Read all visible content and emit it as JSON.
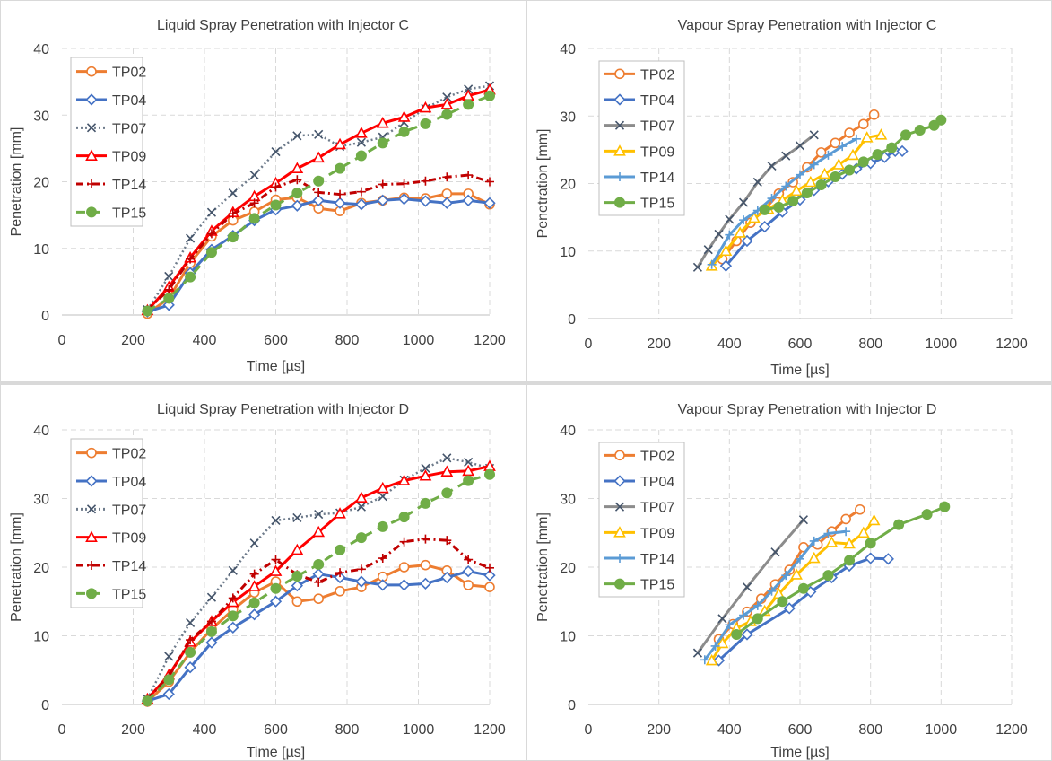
{
  "colors": {
    "TP02": "#ED7D31",
    "TP04": "#4472C4",
    "TP07": "#6E7B8B",
    "TP09": "#FF0000",
    "TP14": "#C00000",
    "TP15": "#70AD47",
    "TP07_vapour": "#8C8C8C",
    "TP09_vapour": "#FFC000",
    "TP14_vapour": "#5B9BD5"
  },
  "chart_data": [
    {
      "type": "line",
      "title": "Liquid Spray Penetration with Injector C",
      "xlabel": "Time [µs]",
      "ylabel": "Penetration [mm]",
      "xlim": [
        0,
        1200
      ],
      "ylim": [
        0,
        40
      ],
      "xticks": [
        0,
        200,
        400,
        600,
        800,
        1000,
        1200
      ],
      "yticks": [
        0,
        10,
        20,
        30,
        40
      ],
      "grid": true,
      "legend_position": "top-left",
      "series": [
        {
          "name": "TP02",
          "marker": "circle",
          "dash": "solid",
          "color": "#ED7D31",
          "x": [
            240,
            300,
            360,
            420,
            480,
            540,
            600,
            660,
            720,
            780,
            840,
            900,
            960,
            1020,
            1080,
            1140,
            1200
          ],
          "y": [
            0.2,
            2.5,
            7.8,
            11.8,
            14.2,
            15.5,
            17.3,
            17.6,
            16.0,
            15.6,
            16.8,
            17.2,
            17.6,
            17.5,
            18.2,
            18.2,
            16.6
          ]
        },
        {
          "name": "TP04",
          "marker": "diamond",
          "dash": "solid",
          "color": "#4472C4",
          "x": [
            240,
            300,
            360,
            420,
            480,
            540,
            600,
            660,
            720,
            780,
            840,
            900,
            960,
            1020,
            1080,
            1140,
            1200
          ],
          "y": [
            0.5,
            1.5,
            6.3,
            9.8,
            11.9,
            14.2,
            15.8,
            16.4,
            17.2,
            16.8,
            16.6,
            17.2,
            17.4,
            17.1,
            16.8,
            17.2,
            16.8
          ]
        },
        {
          "name": "TP07",
          "marker": "x",
          "dash": "dotted",
          "color": "#6E7B8B",
          "x": [
            240,
            300,
            360,
            420,
            480,
            540,
            600,
            660,
            720,
            780,
            840,
            900,
            960,
            1020,
            1080,
            1140,
            1200
          ],
          "y": [
            0.8,
            5.8,
            11.5,
            15.4,
            18.3,
            21.0,
            24.5,
            26.9,
            27.1,
            25.3,
            25.9,
            26.7,
            28.9,
            31.0,
            32.7,
            33.9,
            34.4
          ]
        },
        {
          "name": "TP09",
          "marker": "triangle",
          "dash": "solid",
          "color": "#FF0000",
          "x": [
            240,
            300,
            360,
            420,
            480,
            540,
            600,
            660,
            720,
            780,
            840,
            900,
            960,
            1020,
            1080,
            1140,
            1200
          ],
          "y": [
            0.7,
            4.2,
            8.6,
            12.6,
            15.4,
            17.8,
            19.8,
            22.0,
            23.6,
            25.6,
            27.3,
            28.8,
            29.7,
            31.1,
            31.6,
            32.9,
            33.8
          ]
        },
        {
          "name": "TP14",
          "marker": "plus",
          "dash": "dashdot",
          "color": "#C00000",
          "x": [
            240,
            300,
            360,
            420,
            480,
            540,
            600,
            660,
            720,
            780,
            840,
            900,
            960,
            1020,
            1080,
            1140,
            1200
          ],
          "y": [
            0.8,
            3.8,
            8.4,
            12.2,
            15.2,
            16.8,
            19.2,
            20.3,
            18.4,
            18.1,
            18.5,
            19.6,
            19.7,
            20.1,
            20.7,
            21.0,
            20.0
          ]
        },
        {
          "name": "TP15",
          "marker": "dot",
          "dash": "dashed",
          "color": "#70AD47",
          "x": [
            240,
            300,
            360,
            420,
            480,
            540,
            600,
            660,
            720,
            780,
            840,
            900,
            960,
            1020,
            1080,
            1140,
            1200
          ],
          "y": [
            0.6,
            2.5,
            5.7,
            9.4,
            11.7,
            14.5,
            16.5,
            18.3,
            20.1,
            22.0,
            23.9,
            25.8,
            27.5,
            28.7,
            30.1,
            31.6,
            32.9
          ]
        }
      ]
    },
    {
      "type": "line",
      "title": "Vapour Spray Penetration with Injector C",
      "xlabel": "Time [µs]",
      "ylabel": "Penetration [mm]",
      "xlim": [
        0,
        1200
      ],
      "ylim": [
        0,
        40
      ],
      "xticks": [
        0,
        200,
        400,
        600,
        800,
        1000,
        1200
      ],
      "yticks": [
        0,
        10,
        20,
        30,
        40
      ],
      "grid": true,
      "legend_position": "top-left",
      "series": [
        {
          "name": "TP02",
          "marker": "circle",
          "dash": "solid",
          "color": "#ED7D31",
          "x": [
            380,
            420,
            460,
            500,
            540,
            580,
            620,
            660,
            700,
            740,
            780,
            810
          ],
          "y": [
            8.8,
            11.5,
            14.2,
            16.2,
            18.5,
            20.2,
            22.4,
            24.6,
            26.0,
            27.5,
            28.8,
            30.2
          ]
        },
        {
          "name": "TP04",
          "marker": "diamond",
          "dash": "solid",
          "color": "#4472C4",
          "x": [
            390,
            450,
            500,
            550,
            600,
            640,
            680,
            720,
            760,
            800,
            840,
            870,
            890
          ],
          "y": [
            7.8,
            11.5,
            13.6,
            15.8,
            17.6,
            19.0,
            20.3,
            21.4,
            22.2,
            23.0,
            23.9,
            24.8,
            24.8
          ]
        },
        {
          "name": "TP07",
          "marker": "x",
          "dash": "solid",
          "color": "#8C8C8C",
          "x": [
            310,
            340,
            370,
            400,
            440,
            480,
            520,
            560,
            600,
            640
          ],
          "y": [
            7.6,
            10.2,
            12.5,
            14.7,
            17.2,
            20.2,
            22.6,
            24.1,
            25.6,
            27.2
          ]
        },
        {
          "name": "TP09",
          "marker": "triangle",
          "dash": "solid",
          "color": "#FFC000",
          "x": [
            350,
            390,
            430,
            470,
            510,
            550,
            590,
            630,
            670,
            710,
            750,
            790,
            830
          ],
          "y": [
            7.8,
            10.0,
            12.7,
            14.9,
            16.2,
            17.5,
            18.9,
            20.2,
            21.4,
            22.8,
            24.2,
            26.8,
            27.2
          ]
        },
        {
          "name": "TP14",
          "marker": "plus",
          "dash": "solid",
          "color": "#5B9BD5",
          "x": [
            350,
            400,
            440,
            480,
            520,
            560,
            600,
            640,
            680,
            720,
            760
          ],
          "y": [
            8.0,
            12.4,
            14.6,
            16.0,
            17.8,
            19.6,
            21.3,
            22.8,
            24.2,
            25.5,
            26.6
          ]
        },
        {
          "name": "TP15",
          "marker": "dot",
          "dash": "solid",
          "color": "#70AD47",
          "x": [
            500,
            540,
            580,
            620,
            660,
            700,
            740,
            780,
            820,
            860,
            900,
            940,
            980,
            1000
          ],
          "y": [
            16.1,
            16.5,
            17.4,
            18.6,
            19.8,
            21.0,
            22.0,
            23.2,
            24.3,
            25.3,
            27.2,
            27.9,
            28.6,
            29.4
          ]
        }
      ]
    },
    {
      "type": "line",
      "title": "Liquid Spray Penetration with Injector D",
      "xlabel": "Time [µs]",
      "ylabel": "Penetration [mm]",
      "xlim": [
        0,
        1200
      ],
      "ylim": [
        0,
        40
      ],
      "xticks": [
        0,
        200,
        400,
        600,
        800,
        1000,
        1200
      ],
      "yticks": [
        0,
        10,
        20,
        30,
        40
      ],
      "grid": true,
      "legend_position": "top-left",
      "series": [
        {
          "name": "TP02",
          "marker": "circle",
          "dash": "solid",
          "color": "#ED7D31",
          "x": [
            240,
            300,
            360,
            420,
            480,
            540,
            600,
            660,
            720,
            780,
            840,
            900,
            960,
            1020,
            1080,
            1140,
            1200
          ],
          "y": [
            0.4,
            3.3,
            7.6,
            11.0,
            13.8,
            16.3,
            17.9,
            15.0,
            15.4,
            16.5,
            17.1,
            18.6,
            20.0,
            20.3,
            19.5,
            17.4,
            17.1
          ]
        },
        {
          "name": "TP04",
          "marker": "diamond",
          "dash": "solid",
          "color": "#4472C4",
          "x": [
            240,
            300,
            360,
            420,
            480,
            540,
            600,
            660,
            720,
            780,
            840,
            900,
            960,
            1020,
            1080,
            1140,
            1200
          ],
          "y": [
            0.5,
            1.5,
            5.4,
            9.0,
            11.2,
            13.1,
            15.0,
            17.3,
            19.0,
            18.5,
            17.9,
            17.4,
            17.4,
            17.6,
            18.5,
            19.4,
            18.8
          ]
        },
        {
          "name": "TP07",
          "marker": "x",
          "dash": "dotted",
          "color": "#6E7B8B",
          "x": [
            240,
            300,
            360,
            420,
            480,
            540,
            600,
            660,
            720,
            780,
            840,
            900,
            960,
            1020,
            1080,
            1140,
            1200
          ],
          "y": [
            0.8,
            7.0,
            11.9,
            15.6,
            19.5,
            23.5,
            26.8,
            27.2,
            27.7,
            27.9,
            28.8,
            30.3,
            32.7,
            34.4,
            35.9,
            35.3,
            34.4
          ]
        },
        {
          "name": "TP09",
          "marker": "triangle",
          "dash": "solid",
          "color": "#FF0000",
          "x": [
            240,
            300,
            360,
            420,
            480,
            540,
            600,
            660,
            720,
            780,
            840,
            900,
            960,
            1020,
            1080,
            1140,
            1200
          ],
          "y": [
            0.8,
            4.3,
            9.1,
            12.1,
            14.9,
            17.2,
            19.4,
            22.5,
            25.1,
            27.8,
            30.1,
            31.5,
            32.6,
            33.3,
            33.9,
            34.0,
            34.7
          ]
        },
        {
          "name": "TP14",
          "marker": "plus",
          "dash": "dashdot",
          "color": "#C00000",
          "x": [
            240,
            300,
            360,
            420,
            480,
            540,
            600,
            660,
            720,
            780,
            840,
            900,
            960,
            1020,
            1080,
            1140,
            1200
          ],
          "y": [
            0.8,
            4.1,
            9.4,
            12.1,
            15.5,
            19.0,
            21.1,
            18.9,
            17.8,
            19.2,
            19.7,
            21.3,
            23.7,
            24.1,
            23.9,
            21.1,
            19.9
          ]
        },
        {
          "name": "TP15",
          "marker": "dot",
          "dash": "dashed",
          "color": "#70AD47",
          "x": [
            240,
            300,
            360,
            420,
            480,
            540,
            600,
            660,
            720,
            780,
            840,
            900,
            960,
            1020,
            1080,
            1140,
            1200
          ],
          "y": [
            0.5,
            3.6,
            7.6,
            10.6,
            12.9,
            14.8,
            16.9,
            18.7,
            20.4,
            22.5,
            24.3,
            25.9,
            27.3,
            29.3,
            30.8,
            32.6,
            33.5
          ]
        }
      ]
    },
    {
      "type": "line",
      "title": "Vapour Spray Penetration with Injector D",
      "xlabel": "Time [µs]",
      "ylabel": "Penetration [mm]",
      "xlim": [
        0,
        1200
      ],
      "ylim": [
        0,
        40
      ],
      "xticks": [
        0,
        200,
        400,
        600,
        800,
        1000,
        1200
      ],
      "yticks": [
        0,
        10,
        20,
        30,
        40
      ],
      "grid": true,
      "legend_position": "top-left",
      "series": [
        {
          "name": "TP02",
          "marker": "circle",
          "dash": "solid",
          "color": "#ED7D31",
          "x": [
            370,
            410,
            450,
            490,
            530,
            570,
            610,
            650,
            690,
            730,
            770
          ],
          "y": [
            9.5,
            11.7,
            13.5,
            15.4,
            17.5,
            19.6,
            22.9,
            23.3,
            25.2,
            27.0,
            28.4
          ]
        },
        {
          "name": "TP04",
          "marker": "diamond",
          "dash": "solid",
          "color": "#4472C4",
          "x": [
            370,
            450,
            570,
            630,
            690,
            740,
            800,
            850
          ],
          "y": [
            6.4,
            10.2,
            14.0,
            16.4,
            18.5,
            20.2,
            21.3,
            21.2
          ]
        },
        {
          "name": "TP07",
          "marker": "x",
          "dash": "solid",
          "color": "#8C8C8C",
          "x": [
            310,
            380,
            450,
            530,
            610
          ],
          "y": [
            7.5,
            12.5,
            17.1,
            22.2,
            26.9
          ]
        },
        {
          "name": "TP09",
          "marker": "triangle",
          "dash": "solid",
          "color": "#FFC000",
          "x": [
            350,
            380,
            420,
            460,
            500,
            540,
            590,
            640,
            690,
            740,
            780,
            810
          ],
          "y": [
            6.4,
            8.9,
            11.1,
            12.1,
            13.6,
            16.1,
            18.9,
            21.3,
            23.6,
            23.4,
            25.0,
            26.8
          ]
        },
        {
          "name": "TP14",
          "marker": "plus",
          "dash": "solid",
          "color": "#5B9BD5",
          "x": [
            330,
            360,
            400,
            440,
            480,
            520,
            560,
            600,
            640,
            680,
            730
          ],
          "y": [
            6.5,
            8.5,
            11.6,
            13.0,
            14.4,
            16.5,
            18.8,
            21.2,
            23.8,
            24.9,
            25.2
          ]
        },
        {
          "name": "TP15",
          "marker": "dot",
          "dash": "solid",
          "color": "#70AD47",
          "x": [
            420,
            480,
            550,
            610,
            680,
            740,
            800,
            880,
            960,
            1010
          ],
          "y": [
            10.2,
            12.5,
            15.0,
            16.9,
            18.8,
            21.0,
            23.5,
            26.2,
            27.7,
            28.8
          ]
        }
      ]
    }
  ]
}
